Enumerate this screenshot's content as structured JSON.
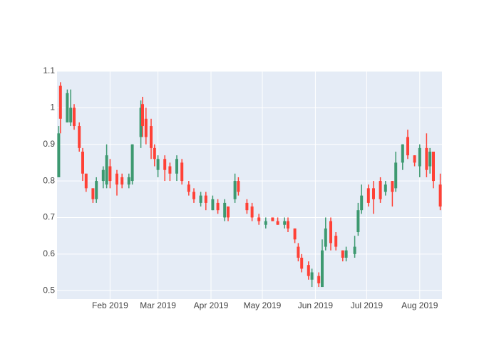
{
  "chart_data": {
    "type": "candlestick",
    "x": [
      "2019-01-02",
      "2019-01-03",
      "2019-01-07",
      "2019-01-09",
      "2019-01-11",
      "2019-01-14",
      "2019-01-16",
      "2019-01-18",
      "2019-01-22",
      "2019-01-24",
      "2019-01-28",
      "2019-01-30",
      "2019-02-01",
      "2019-02-05",
      "2019-02-08",
      "2019-02-12",
      "2019-02-14",
      "2019-02-19",
      "2019-02-20",
      "2019-02-22",
      "2019-02-25",
      "2019-02-27",
      "2019-03-01",
      "2019-03-05",
      "2019-03-08",
      "2019-03-12",
      "2019-03-15",
      "2019-03-19",
      "2019-03-22",
      "2019-03-26",
      "2019-03-29",
      "2019-04-02",
      "2019-04-05",
      "2019-04-09",
      "2019-04-11",
      "2019-04-15",
      "2019-04-17",
      "2019-04-22",
      "2019-04-25",
      "2019-04-29",
      "2019-05-03",
      "2019-05-07",
      "2019-05-10",
      "2019-05-14",
      "2019-05-16",
      "2019-05-20",
      "2019-05-22",
      "2019-05-24",
      "2019-05-28",
      "2019-05-30",
      "2019-06-03",
      "2019-06-05",
      "2019-06-07",
      "2019-06-10",
      "2019-06-13",
      "2019-06-17",
      "2019-06-19",
      "2019-06-24",
      "2019-06-26",
      "2019-06-28",
      "2019-07-02",
      "2019-07-05",
      "2019-07-09",
      "2019-07-12",
      "2019-07-16",
      "2019-07-18",
      "2019-07-22",
      "2019-07-25",
      "2019-07-29",
      "2019-08-01",
      "2019-08-05",
      "2019-08-07",
      "2019-08-09",
      "2019-08-13"
    ],
    "open": [
      0.81,
      1.06,
      0.96,
      0.96,
      1.0,
      0.95,
      0.88,
      0.82,
      0.78,
      0.75,
      0.8,
      0.79,
      0.84,
      0.82,
      0.81,
      0.79,
      0.8,
      0.92,
      1.01,
      0.97,
      0.95,
      0.89,
      0.83,
      0.86,
      0.84,
      0.82,
      0.85,
      0.79,
      0.77,
      0.74,
      0.76,
      0.72,
      0.74,
      0.7,
      0.73,
      0.75,
      0.8,
      0.74,
      0.73,
      0.7,
      0.68,
      0.7,
      0.69,
      0.68,
      0.69,
      0.67,
      0.62,
      0.59,
      0.57,
      0.53,
      0.54,
      0.51,
      0.62,
      0.69,
      0.65,
      0.61,
      0.59,
      0.6,
      0.66,
      0.72,
      0.78,
      0.78,
      0.8,
      0.77,
      0.8,
      0.78,
      0.85,
      0.92,
      0.87,
      0.84,
      0.89,
      0.84,
      0.88,
      0.79
    ],
    "high": [
      0.95,
      1.07,
      1.05,
      1.05,
      1.01,
      0.96,
      0.89,
      0.82,
      0.78,
      0.81,
      0.84,
      0.9,
      0.86,
      0.83,
      0.82,
      0.82,
      0.9,
      1.02,
      1.03,
      1.0,
      0.97,
      0.9,
      0.87,
      0.87,
      0.85,
      0.87,
      0.86,
      0.8,
      0.78,
      0.77,
      0.77,
      0.76,
      0.75,
      0.75,
      0.73,
      0.82,
      0.81,
      0.75,
      0.74,
      0.71,
      0.7,
      0.7,
      0.7,
      0.7,
      0.7,
      0.67,
      0.63,
      0.6,
      0.58,
      0.56,
      0.55,
      0.64,
      0.7,
      0.7,
      0.66,
      0.61,
      0.62,
      0.65,
      0.74,
      0.79,
      0.79,
      0.8,
      0.81,
      0.8,
      0.8,
      0.88,
      0.9,
      0.94,
      0.87,
      0.9,
      0.93,
      0.89,
      0.88,
      0.82
    ],
    "low": [
      0.81,
      0.93,
      0.96,
      0.95,
      0.94,
      0.88,
      0.8,
      0.77,
      0.74,
      0.74,
      0.78,
      0.78,
      0.78,
      0.76,
      0.78,
      0.78,
      0.79,
      0.89,
      0.92,
      0.9,
      0.86,
      0.84,
      0.81,
      0.8,
      0.8,
      0.8,
      0.79,
      0.76,
      0.74,
      0.73,
      0.72,
      0.72,
      0.71,
      0.69,
      0.69,
      0.74,
      0.76,
      0.71,
      0.69,
      0.68,
      0.67,
      0.69,
      0.68,
      0.67,
      0.66,
      0.63,
      0.58,
      0.55,
      0.53,
      0.51,
      0.51,
      0.51,
      0.61,
      0.61,
      0.61,
      0.58,
      0.58,
      0.59,
      0.65,
      0.71,
      0.73,
      0.71,
      0.74,
      0.76,
      0.73,
      0.77,
      0.83,
      0.86,
      0.84,
      0.81,
      0.81,
      0.82,
      0.78,
      0.72
    ],
    "close": [
      0.93,
      0.97,
      1.04,
      1.0,
      0.95,
      0.89,
      0.82,
      0.78,
      0.75,
      0.8,
      0.83,
      0.87,
      0.8,
      0.79,
      0.79,
      0.81,
      0.9,
      1.0,
      0.95,
      0.92,
      0.89,
      0.86,
      0.86,
      0.83,
      0.82,
      0.86,
      0.8,
      0.77,
      0.75,
      0.76,
      0.74,
      0.75,
      0.72,
      0.74,
      0.7,
      0.8,
      0.77,
      0.72,
      0.7,
      0.69,
      0.69,
      0.69,
      0.68,
      0.69,
      0.67,
      0.64,
      0.59,
      0.56,
      0.54,
      0.55,
      0.52,
      0.61,
      0.67,
      0.63,
      0.62,
      0.59,
      0.61,
      0.62,
      0.72,
      0.76,
      0.74,
      0.75,
      0.75,
      0.79,
      0.77,
      0.85,
      0.9,
      0.87,
      0.85,
      0.89,
      0.83,
      0.88,
      0.8,
      0.73
    ],
    "increasing_color": "#3d9970",
    "decreasing_color": "#ff4136",
    "xlim": [
      "2019-01-01",
      "2019-08-14"
    ],
    "xticks": [
      {
        "value": "2019-02-01",
        "label": "Feb 2019"
      },
      {
        "value": "2019-03-01",
        "label": "Mar 2019"
      },
      {
        "value": "2019-04-01",
        "label": "Apr 2019"
      },
      {
        "value": "2019-05-01",
        "label": "May 2019"
      },
      {
        "value": "2019-06-01",
        "label": "Jun 2019"
      },
      {
        "value": "2019-07-01",
        "label": "Jul 2019"
      },
      {
        "value": "2019-08-01",
        "label": "Aug 2019"
      }
    ],
    "ylim": [
      0.477,
      1.1
    ],
    "yticks": [
      0.5,
      0.6,
      0.7,
      0.8,
      0.9,
      1,
      1.1
    ],
    "grid": true
  }
}
